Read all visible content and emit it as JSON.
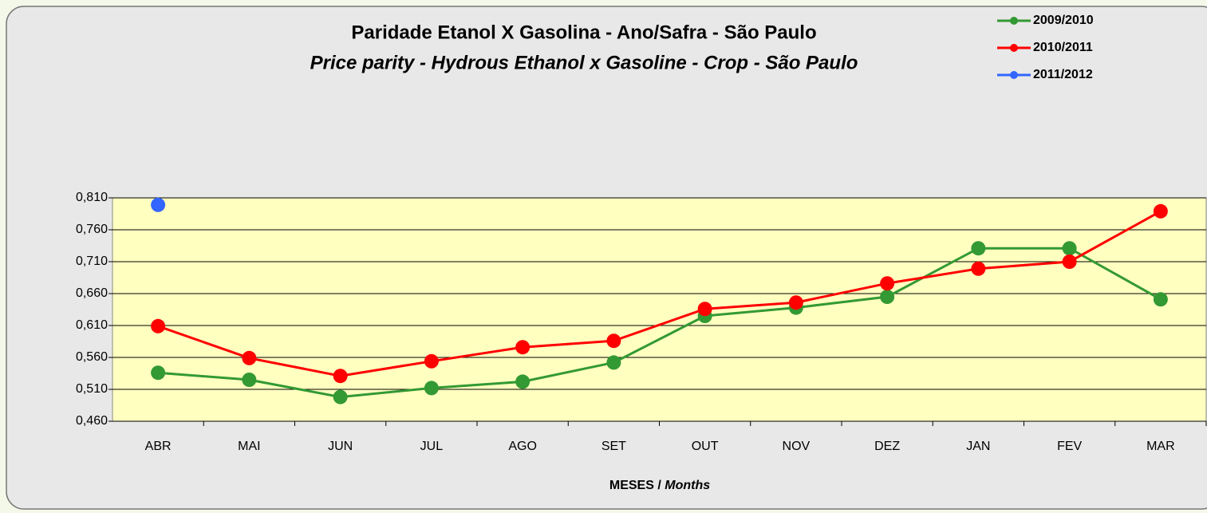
{
  "chart_data": {
    "type": "line",
    "title": "Paridade Etanol X Gasolina  - Ano/Safra - São Paulo",
    "subtitle": "Price parity - Hydrous Ethanol x Gasoline - Crop - São Paulo",
    "xlabel": "MESES /",
    "xlabel_en": "Months",
    "categories": [
      "ABR",
      "MAI",
      "JUN",
      "JUL",
      "AGO",
      "SET",
      "OUT",
      "NOV",
      "DEZ",
      "JAN",
      "FEV",
      "MAR"
    ],
    "series": [
      {
        "name": "2009/2010",
        "color": "#339933",
        "values": [
          0.536,
          0.525,
          0.498,
          0.512,
          0.522,
          0.552,
          0.625,
          0.638,
          0.655,
          0.731,
          0.731,
          0.651
        ]
      },
      {
        "name": "2010/2011",
        "color": "#ff0000",
        "values": [
          0.609,
          0.559,
          0.531,
          0.554,
          0.576,
          0.586,
          0.636,
          0.646,
          0.676,
          0.699,
          0.71,
          0.789
        ]
      },
      {
        "name": "2011/2012",
        "color": "#3366ff",
        "values": [
          0.799,
          null,
          null,
          null,
          null,
          null,
          null,
          null,
          null,
          null,
          null,
          null
        ]
      }
    ],
    "ylim": [
      0.46,
      0.81
    ],
    "yticks": [
      {
        "value": 0.46,
        "label": "0,460"
      },
      {
        "value": 0.51,
        "label": "0,510"
      },
      {
        "value": 0.56,
        "label": "0,560"
      },
      {
        "value": 0.61,
        "label": "0,610"
      },
      {
        "value": 0.66,
        "label": "0,660"
      },
      {
        "value": 0.71,
        "label": "0,710"
      },
      {
        "value": 0.76,
        "label": "0,760"
      },
      {
        "value": 0.81,
        "label": "0,810"
      }
    ],
    "grid": true,
    "legend": "top-right"
  }
}
